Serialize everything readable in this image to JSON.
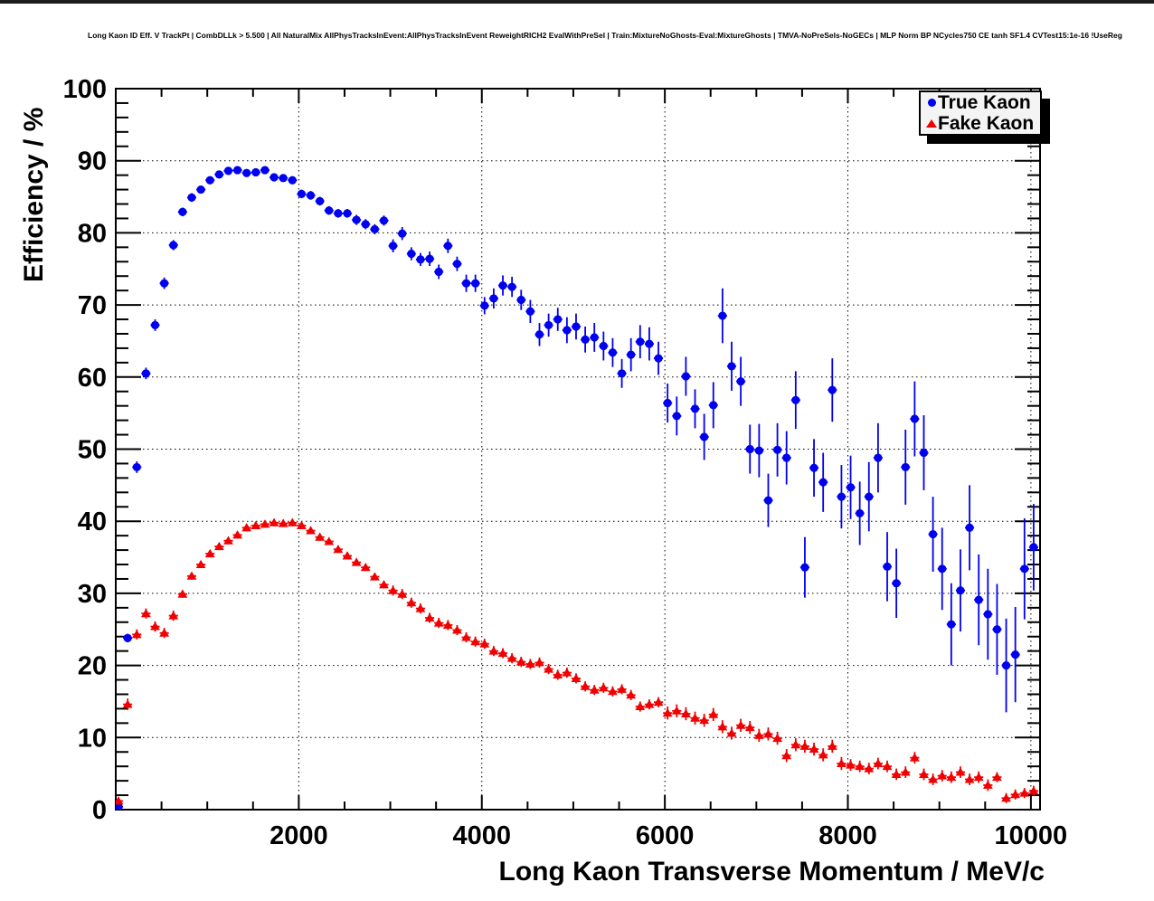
{
  "page": {
    "title": "Long Kaon ID Eff. V TrackPt | CombDLLk > 5.500 | All NaturalMix AllPhysTracksInEvent:AllPhysTracksInEvent ReweightRICH2 EvalWithPreSel | Train:MixtureNoGhosts-Eval:MixtureGhosts | TMVA-NoPreSels-NoGECs | MLP Norm BP NCycles750 CE tanh SF1.4 CVTest15:1e-16 !UseReg",
    "background_color": "#ffffff",
    "top_bar_color": "#1c1c1c"
  },
  "legend": {
    "entries": [
      {
        "label": "True Kaon",
        "marker": "circle",
        "color": "#0000f0"
      },
      {
        "label": "Fake Kaon",
        "marker": "triangle",
        "color": "#f00000"
      }
    ]
  },
  "chart_data": {
    "type": "scatter",
    "title": "Long Kaon ID Eff. V TrackPt | CombDLLk > 5.500 | All NaturalMix AllPhysTracksInEvent:AllPhysTracksInEvent ReweightRICH2 EvalWithPreSel | Train:MixtureNoGhosts-Eval:MixtureGhosts | TMVA-NoPreSels-NoGECs | MLP Norm BP NCycles750 CE tanh SF1.4 CVTest15:1e-16 !UseReg",
    "xlabel": "Long Kaon Transverse Momentum / MeV/c",
    "ylabel": "Efficiency / %",
    "xlim": [
      0,
      10100
    ],
    "ylim": [
      0,
      100
    ],
    "x_major_ticks": [
      2000,
      4000,
      6000,
      8000,
      10000
    ],
    "x_minor_step": 500,
    "y_major_step": 10,
    "y_minor_step": 2,
    "grid": "dotted-at-major-ticks",
    "grid_color": "#000000",
    "legend_position": "top-right",
    "x_bin_halfwidth": 50,
    "x": [
      30,
      130,
      230,
      330,
      430,
      530,
      630,
      730,
      830,
      930,
      1030,
      1130,
      1230,
      1330,
      1430,
      1530,
      1630,
      1730,
      1830,
      1930,
      2030,
      2130,
      2230,
      2330,
      2430,
      2530,
      2630,
      2730,
      2830,
      2930,
      3030,
      3130,
      3230,
      3330,
      3430,
      3530,
      3630,
      3730,
      3830,
      3930,
      4030,
      4130,
      4230,
      4330,
      4430,
      4530,
      4630,
      4730,
      4830,
      4930,
      5030,
      5130,
      5230,
      5330,
      5430,
      5530,
      5630,
      5730,
      5830,
      5930,
      6030,
      6130,
      6230,
      6330,
      6430,
      6530,
      6630,
      6730,
      6830,
      6930,
      7030,
      7130,
      7230,
      7330,
      7430,
      7530,
      7630,
      7730,
      7830,
      7930,
      8030,
      8130,
      8230,
      8330,
      8430,
      8530,
      8630,
      8730,
      8830,
      8930,
      9030,
      9130,
      9230,
      9330,
      9430,
      9530,
      9630,
      9730,
      9830,
      9930,
      10030
    ],
    "series": [
      {
        "name": "True Kaon",
        "marker": "circle",
        "color": "#0000f0",
        "y": [
          0.4,
          23.8,
          47.5,
          60.5,
          67.2,
          73.0,
          78.3,
          82.9,
          84.9,
          86.0,
          87.3,
          88.1,
          88.6,
          88.7,
          88.3,
          88.4,
          88.7,
          87.7,
          87.6,
          87.3,
          85.4,
          85.2,
          84.4,
          83.1,
          82.7,
          82.7,
          81.8,
          81.2,
          80.5,
          81.7,
          78.2,
          79.9,
          77.1,
          76.3,
          76.4,
          74.6,
          78.2,
          75.7,
          73.0,
          73.0,
          69.9,
          70.9,
          72.7,
          72.5,
          70.7,
          69.1,
          65.9,
          67.2,
          68.0,
          66.5,
          67.0,
          65.2,
          65.5,
          64.3,
          63.4,
          60.5,
          63.1,
          64.9,
          64.6,
          62.6,
          56.4,
          54.6,
          60.1,
          55.6,
          51.7,
          56.1,
          68.5,
          61.5,
          59.4,
          50.0,
          49.8,
          42.9,
          49.9,
          48.8,
          56.8,
          33.6,
          47.4,
          45.4,
          58.2,
          43.4,
          44.7,
          41.1,
          43.4,
          48.8,
          33.7,
          31.4,
          47.5,
          54.2,
          49.5,
          38.2,
          33.4,
          25.7,
          30.4,
          39.1,
          29.1,
          27.1,
          25.0,
          20.0,
          21.5,
          33.4,
          36.4
        ],
        "yerr": [
          0.3,
          0.6,
          0.8,
          0.8,
          0.8,
          0.8,
          0.7,
          0.6,
          0.6,
          0.5,
          0.5,
          0.5,
          0.5,
          0.5,
          0.5,
          0.5,
          0.5,
          0.5,
          0.5,
          0.5,
          0.6,
          0.6,
          0.6,
          0.6,
          0.6,
          0.6,
          0.7,
          0.7,
          0.7,
          0.7,
          0.9,
          0.9,
          0.9,
          0.9,
          1.0,
          1.0,
          1.0,
          1.0,
          1.2,
          1.2,
          1.2,
          1.4,
          1.4,
          1.4,
          1.4,
          1.6,
          1.6,
          1.6,
          1.6,
          1.8,
          1.8,
          1.8,
          2.0,
          2.0,
          2.0,
          2.0,
          2.3,
          2.3,
          2.3,
          2.3,
          2.7,
          2.7,
          2.7,
          2.7,
          3.2,
          3.2,
          3.8,
          3.4,
          3.4,
          3.4,
          3.7,
          3.7,
          3.7,
          3.7,
          4.0,
          4.2,
          4.0,
          4.1,
          4.4,
          4.4,
          4.4,
          4.4,
          4.8,
          4.8,
          4.8,
          4.8,
          5.2,
          5.2,
          5.2,
          5.2,
          5.7,
          5.7,
          5.7,
          5.9,
          6.3,
          6.3,
          6.3,
          6.5,
          6.6,
          7.0,
          6.0
        ]
      },
      {
        "name": "Fake Kaon",
        "marker": "triangle",
        "color": "#f00000",
        "y": [
          1.2,
          14.6,
          24.3,
          27.2,
          25.4,
          24.5,
          26.9,
          29.9,
          32.4,
          34.0,
          35.5,
          36.5,
          37.3,
          38.1,
          39.1,
          39.4,
          39.6,
          39.8,
          39.7,
          39.8,
          39.4,
          38.7,
          37.8,
          37.2,
          36.1,
          35.2,
          34.3,
          33.6,
          32.3,
          31.2,
          30.4,
          29.9,
          28.7,
          27.9,
          26.6,
          25.9,
          25.6,
          24.9,
          23.9,
          23.3,
          23.0,
          22.0,
          21.7,
          21.0,
          20.5,
          20.2,
          20.4,
          19.5,
          18.7,
          19.0,
          18.2,
          17.1,
          16.6,
          16.9,
          16.4,
          16.7,
          15.9,
          14.3,
          14.6,
          14.9,
          13.4,
          13.7,
          13.3,
          12.7,
          12.4,
          13.2,
          11.5,
          10.6,
          11.7,
          11.4,
          10.3,
          10.5,
          9.9,
          7.5,
          9.0,
          8.8,
          8.4,
          7.6,
          8.8,
          6.4,
          6.2,
          6.0,
          5.7,
          6.4,
          6.0,
          4.9,
          5.2,
          7.2,
          4.9,
          4.2,
          4.7,
          4.5,
          5.2,
          4.2,
          4.5,
          3.4,
          4.5,
          1.6,
          2.1,
          2.3,
          2.6
        ],
        "yerr": [
          0.5,
          0.8,
          0.7,
          0.7,
          0.7,
          0.7,
          0.7,
          0.5,
          0.5,
          0.5,
          0.5,
          0.5,
          0.5,
          0.5,
          0.5,
          0.5,
          0.5,
          0.5,
          0.5,
          0.5,
          0.5,
          0.5,
          0.5,
          0.5,
          0.5,
          0.5,
          0.5,
          0.5,
          0.5,
          0.5,
          0.7,
          0.7,
          0.7,
          0.7,
          0.7,
          0.7,
          0.7,
          0.7,
          0.7,
          0.7,
          0.7,
          0.7,
          0.7,
          0.7,
          0.7,
          0.7,
          0.7,
          0.7,
          0.7,
          0.7,
          0.7,
          0.7,
          0.7,
          0.7,
          0.7,
          0.7,
          0.7,
          0.7,
          0.7,
          0.7,
          0.9,
          0.9,
          0.9,
          0.9,
          0.9,
          0.9,
          0.9,
          0.9,
          0.9,
          0.9,
          0.9,
          0.9,
          0.9,
          0.9,
          0.9,
          0.9,
          0.9,
          0.9,
          0.9,
          0.9,
          0.8,
          0.8,
          0.8,
          0.8,
          0.8,
          0.8,
          0.8,
          0.8,
          0.8,
          0.8,
          0.8,
          0.8,
          0.8,
          0.8,
          0.8,
          0.8,
          0.7,
          0.7,
          0.7,
          0.7,
          0.7
        ]
      }
    ]
  }
}
